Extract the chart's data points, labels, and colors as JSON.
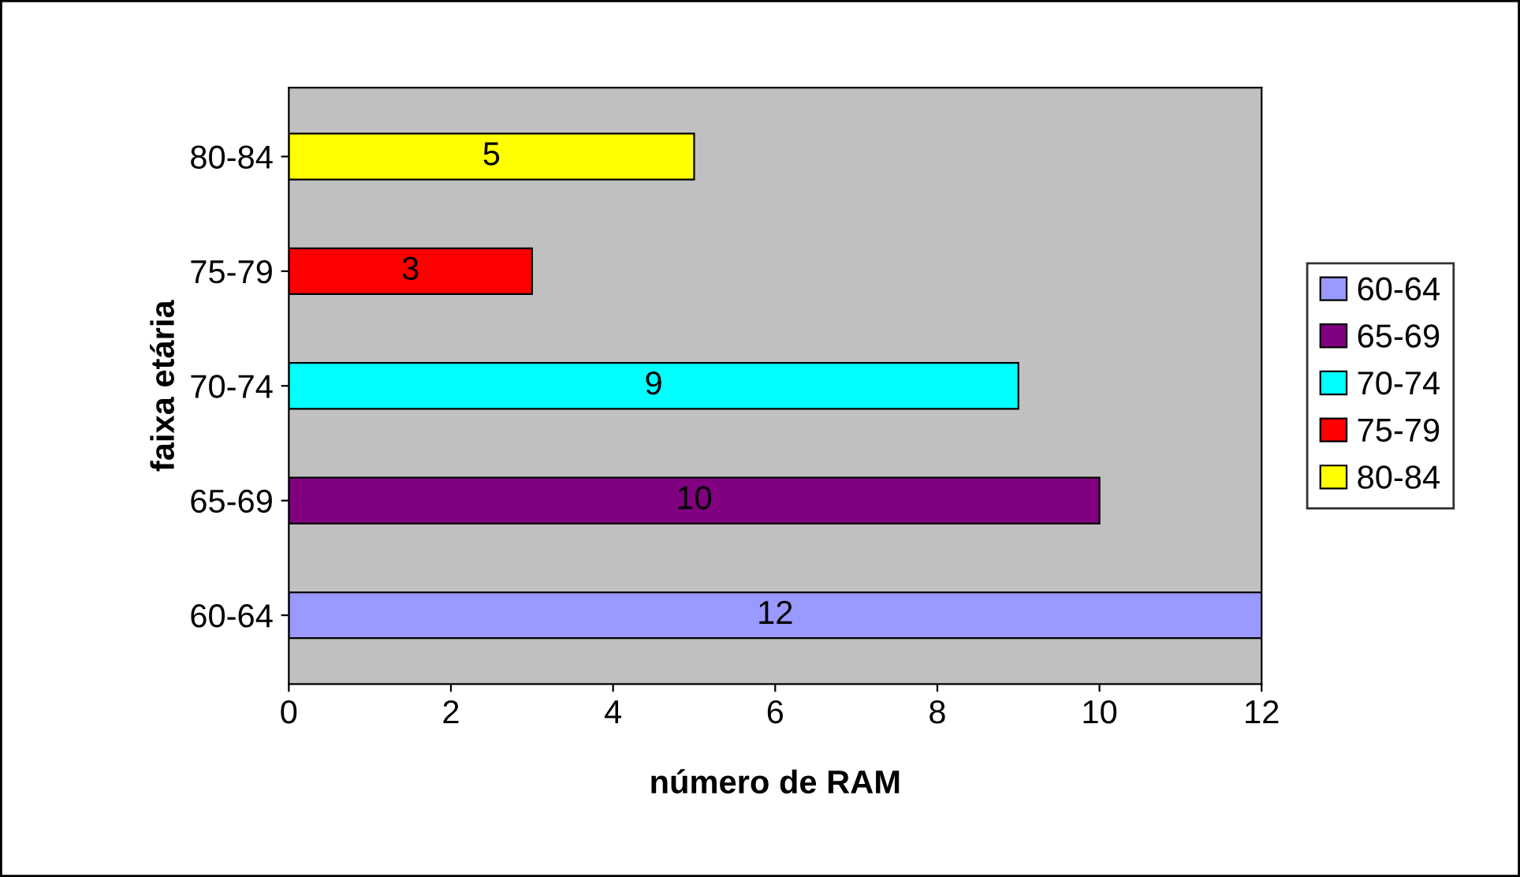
{
  "chart_data": {
    "type": "bar",
    "orientation": "horizontal",
    "categories": [
      "80-84",
      "75-79",
      "70-74",
      "65-69",
      "60-64"
    ],
    "series": [
      {
        "name": "60-64",
        "color": "#9999ff",
        "values": [
          null,
          null,
          null,
          null,
          12
        ]
      },
      {
        "name": "65-69",
        "color": "#800080",
        "values": [
          null,
          null,
          null,
          10,
          null
        ]
      },
      {
        "name": "70-74",
        "color": "#00ffff",
        "values": [
          null,
          null,
          9,
          null,
          null
        ]
      },
      {
        "name": "75-79",
        "color": "#ff0000",
        "values": [
          null,
          3,
          null,
          null,
          null
        ]
      },
      {
        "name": "80-84",
        "color": "#ffff00",
        "values": [
          5,
          null,
          null,
          null,
          null
        ]
      }
    ],
    "xlabel": "número de RAM",
    "ylabel": "faixa etária",
    "xlim": [
      0,
      12
    ],
    "xticks": [
      0,
      2,
      4,
      6,
      8,
      10,
      12
    ],
    "data_labels": true,
    "grid": false,
    "legend": "right"
  }
}
